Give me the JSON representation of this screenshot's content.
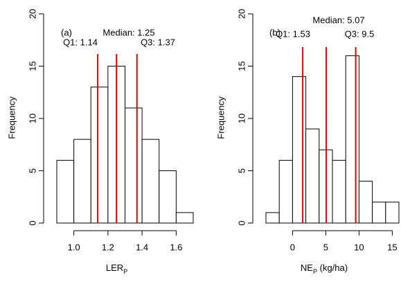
{
  "chart_data": [
    {
      "type": "histogram",
      "panel_label": "(a)",
      "xlabel": [
        "LER",
        "P"
      ],
      "ylabel": "Frequency",
      "bins": [
        0.9,
        1.0,
        1.1,
        1.2,
        1.3,
        1.4,
        1.5,
        1.6,
        1.7
      ],
      "counts": [
        6,
        8,
        13,
        15,
        11,
        8,
        5,
        1
      ],
      "color": "#ffffff",
      "edge_color": "#000000",
      "xlim": [
        0.9,
        1.7
      ],
      "xticks": [
        {
          "value": 1,
          "label": "1.0"
        },
        1.2,
        1.4,
        1.6
      ],
      "ylim": [
        0,
        20
      ],
      "yticks": [
        0,
        5,
        10,
        15,
        20
      ],
      "line_color": "#e00000",
      "lines": [
        {
          "value": 1.14,
          "label": "Q1: 1.14"
        },
        {
          "value": 1.25,
          "label": "Median: 1.25"
        },
        {
          "value": 1.37,
          "label": "Q3: 1.37"
        }
      ]
    },
    {
      "type": "histogram",
      "panel_label": "(b)",
      "xlabel": [
        "NE",
        "P",
        " (kg/ha)"
      ],
      "ylabel": "Frequency",
      "bins": [
        -4,
        -2,
        0,
        2,
        4,
        6,
        8,
        10,
        12,
        14,
        16
      ],
      "counts": [
        1,
        6,
        14,
        9,
        7,
        6,
        16,
        4,
        2,
        2
      ],
      "color": "#ffffff",
      "edge_color": "#000000",
      "xlim": [
        -4,
        16
      ],
      "xticks": [
        0,
        5,
        10,
        15
      ],
      "ylim": [
        0,
        20
      ],
      "yticks": [
        0,
        5,
        10,
        15,
        20
      ],
      "line_color": "#e00000",
      "lines": [
        {
          "value": 1.53,
          "label": "Q1: 1.53"
        },
        {
          "value": 5.07,
          "label": "Median: 5.07"
        },
        {
          "value": 9.5,
          "label": "Q3: 9.5"
        }
      ]
    }
  ]
}
